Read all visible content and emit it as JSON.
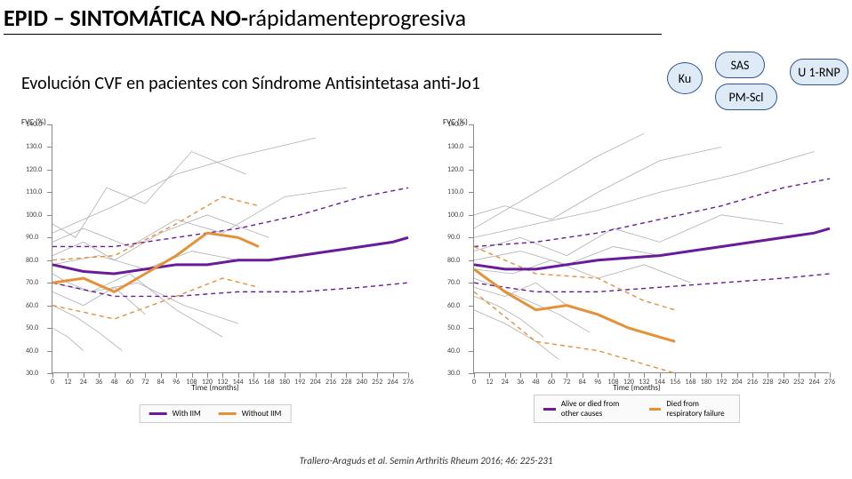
{
  "title": {
    "pre": "EPID – SINTOMÁTICA  NO-",
    "post": "rápidamenteprogresiva"
  },
  "subtitle": "Evolución CVF en pacientes con Síndrome Antisintetasa anti-Jo1",
  "badges": {
    "ku": "Ku",
    "sas": "SAS",
    "pm": "PM-Scl",
    "u1": "U 1-RNP"
  },
  "axis": {
    "ylabel": "FVC (%)",
    "xlabel": "Time (months)",
    "ylim": [
      30,
      140
    ],
    "ytick_step": 10,
    "xlim": [
      0,
      276
    ],
    "xtick_step": 12
  },
  "colors": {
    "background": "#ffffff",
    "grey_series": "#b0b0b0",
    "purple_mean": "#6a1b9a",
    "purple_ci": "#6a1b9a",
    "orange_mean": "#e69138",
    "orange_ci": "#e69138",
    "grid": "#e0e0e0",
    "axis": "#888888",
    "text": "#333333",
    "badge_fill": "#deebf7",
    "badge_stroke": "#2f5597"
  },
  "legend_left": {
    "a": {
      "label": "With IIM",
      "color": "#6a1b9a"
    },
    "b": {
      "label": "Without IIM",
      "color": "#e69138"
    }
  },
  "legend_right": {
    "a": {
      "label": "Alive or died from other causes",
      "color": "#6a1b9a"
    },
    "b": {
      "label": "Died from respiratory failure",
      "color": "#e69138"
    }
  },
  "left_chart": {
    "grey_patients": [
      [
        [
          0,
          96
        ],
        [
          18,
          90
        ],
        [
          42,
          112
        ],
        [
          72,
          105
        ],
        [
          108,
          128
        ],
        [
          150,
          118
        ]
      ],
      [
        [
          0,
          74
        ],
        [
          12,
          70
        ],
        [
          30,
          66
        ],
        [
          60,
          74
        ],
        [
          96,
          58
        ],
        [
          132,
          46
        ]
      ],
      [
        [
          0,
          82
        ],
        [
          24,
          88
        ],
        [
          48,
          80
        ],
        [
          84,
          92
        ],
        [
          120,
          100
        ],
        [
          168,
          90
        ]
      ],
      [
        [
          0,
          60
        ],
        [
          18,
          55
        ],
        [
          36,
          48
        ],
        [
          54,
          40
        ]
      ],
      [
        [
          0,
          70
        ],
        [
          30,
          66
        ],
        [
          66,
          70
        ],
        [
          102,
          60
        ],
        [
          144,
          52
        ]
      ],
      [
        [
          0,
          88
        ],
        [
          24,
          94
        ],
        [
          60,
          86
        ],
        [
          96,
          98
        ],
        [
          132,
          92
        ],
        [
          180,
          108
        ],
        [
          228,
          112
        ]
      ],
      [
        [
          0,
          50
        ],
        [
          12,
          46
        ],
        [
          24,
          40
        ]
      ],
      [
        [
          0,
          78
        ],
        [
          36,
          82
        ],
        [
          72,
          76
        ],
        [
          108,
          84
        ],
        [
          144,
          80
        ]
      ],
      [
        [
          0,
          92
        ],
        [
          48,
          104
        ],
        [
          96,
          118
        ],
        [
          144,
          126
        ],
        [
          204,
          134
        ]
      ],
      [
        [
          0,
          66
        ],
        [
          24,
          60
        ],
        [
          48,
          68
        ],
        [
          72,
          56
        ]
      ]
    ],
    "purple_mean": [
      [
        0,
        78
      ],
      [
        24,
        75
      ],
      [
        48,
        74
      ],
      [
        72,
        76
      ],
      [
        96,
        78
      ],
      [
        120,
        78
      ],
      [
        144,
        80
      ],
      [
        168,
        80
      ],
      [
        192,
        82
      ],
      [
        216,
        84
      ],
      [
        240,
        86
      ],
      [
        264,
        88
      ],
      [
        276,
        90
      ]
    ],
    "purple_ci_up": [
      [
        0,
        86
      ],
      [
        48,
        86
      ],
      [
        96,
        90
      ],
      [
        144,
        94
      ],
      [
        192,
        100
      ],
      [
        240,
        108
      ],
      [
        276,
        112
      ]
    ],
    "purple_ci_lo": [
      [
        0,
        70
      ],
      [
        48,
        64
      ],
      [
        96,
        64
      ],
      [
        144,
        66
      ],
      [
        192,
        66
      ],
      [
        240,
        68
      ],
      [
        276,
        70
      ]
    ],
    "orange_mean": [
      [
        0,
        70
      ],
      [
        24,
        72
      ],
      [
        48,
        66
      ],
      [
        72,
        74
      ],
      [
        96,
        82
      ],
      [
        120,
        92
      ],
      [
        144,
        90
      ],
      [
        160,
        86
      ]
    ],
    "orange_ci_up": [
      [
        0,
        80
      ],
      [
        48,
        82
      ],
      [
        96,
        96
      ],
      [
        132,
        108
      ],
      [
        160,
        104
      ]
    ],
    "orange_ci_lo": [
      [
        0,
        60
      ],
      [
        48,
        54
      ],
      [
        96,
        64
      ],
      [
        132,
        72
      ],
      [
        160,
        68
      ]
    ]
  },
  "right_chart": {
    "grey_patients": [
      [
        [
          0,
          100
        ],
        [
          24,
          104
        ],
        [
          60,
          98
        ],
        [
          96,
          110
        ],
        [
          144,
          124
        ],
        [
          192,
          130
        ]
      ],
      [
        [
          0,
          72
        ],
        [
          18,
          68
        ],
        [
          42,
          62
        ],
        [
          66,
          56
        ],
        [
          90,
          48
        ]
      ],
      [
        [
          0,
          84
        ],
        [
          36,
          90
        ],
        [
          72,
          82
        ],
        [
          108,
          94
        ],
        [
          144,
          88
        ],
        [
          192,
          100
        ],
        [
          240,
          96
        ]
      ],
      [
        [
          0,
          58
        ],
        [
          24,
          52
        ],
        [
          48,
          44
        ],
        [
          66,
          36
        ]
      ],
      [
        [
          0,
          76
        ],
        [
          30,
          74
        ],
        [
          60,
          80
        ],
        [
          96,
          72
        ],
        [
          132,
          78
        ],
        [
          168,
          70
        ]
      ],
      [
        [
          0,
          90
        ],
        [
          48,
          96
        ],
        [
          96,
          102
        ],
        [
          144,
          110
        ],
        [
          204,
          118
        ],
        [
          264,
          128
        ]
      ],
      [
        [
          0,
          64
        ],
        [
          18,
          60
        ],
        [
          36,
          54
        ],
        [
          54,
          46
        ]
      ],
      [
        [
          0,
          80
        ],
        [
          36,
          84
        ],
        [
          72,
          78
        ],
        [
          108,
          86
        ],
        [
          144,
          82
        ]
      ],
      [
        [
          0,
          68
        ],
        [
          24,
          64
        ],
        [
          48,
          70
        ],
        [
          72,
          60
        ]
      ],
      [
        [
          0,
          94
        ],
        [
          48,
          110
        ],
        [
          96,
          126
        ],
        [
          132,
          136
        ]
      ]
    ],
    "purple_mean": [
      [
        0,
        78
      ],
      [
        24,
        76
      ],
      [
        48,
        76
      ],
      [
        72,
        78
      ],
      [
        96,
        80
      ],
      [
        120,
        81
      ],
      [
        144,
        82
      ],
      [
        168,
        84
      ],
      [
        192,
        86
      ],
      [
        216,
        88
      ],
      [
        240,
        90
      ],
      [
        264,
        92
      ],
      [
        276,
        94
      ]
    ],
    "purple_ci_up": [
      [
        0,
        86
      ],
      [
        48,
        88
      ],
      [
        96,
        92
      ],
      [
        144,
        98
      ],
      [
        192,
        104
      ],
      [
        240,
        112
      ],
      [
        276,
        116
      ]
    ],
    "purple_ci_lo": [
      [
        0,
        70
      ],
      [
        48,
        66
      ],
      [
        96,
        66
      ],
      [
        144,
        68
      ],
      [
        192,
        70
      ],
      [
        240,
        72
      ],
      [
        276,
        74
      ]
    ],
    "orange_mean": [
      [
        0,
        76
      ],
      [
        24,
        66
      ],
      [
        48,
        58
      ],
      [
        72,
        60
      ],
      [
        96,
        56
      ],
      [
        120,
        50
      ],
      [
        144,
        46
      ],
      [
        156,
        44
      ]
    ],
    "orange_ci_up": [
      [
        0,
        86
      ],
      [
        48,
        74
      ],
      [
        96,
        72
      ],
      [
        132,
        62
      ],
      [
        156,
        58
      ]
    ],
    "orange_ci_lo": [
      [
        0,
        66
      ],
      [
        48,
        44
      ],
      [
        96,
        40
      ],
      [
        132,
        34
      ],
      [
        156,
        30
      ]
    ]
  },
  "citation": "Trallero-Araguás et al. Semin Arthritis Rheum 2016; 46: 225-231"
}
